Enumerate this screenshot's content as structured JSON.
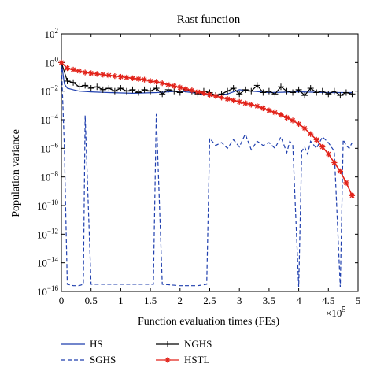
{
  "chart_data": {
    "type": "line",
    "title": "Rast function",
    "xlabel": "Function evaluation times (FEs)",
    "ylabel": "Population variance",
    "x_multiplier_base": "×10",
    "x_multiplier_exp": "5",
    "xlim": [
      0,
      5
    ],
    "ylim_log10": [
      -16,
      2
    ],
    "y_scale": "log",
    "x_ticks": [
      0,
      0.5,
      1,
      1.5,
      2,
      2.5,
      3,
      3.5,
      4,
      4.5,
      5
    ],
    "x_tick_labels": [
      "0",
      "0.5",
      "1",
      "1.5",
      "2",
      "2.5",
      "3",
      "3.5",
      "4",
      "4.5",
      "5"
    ],
    "y_ticks_exp": [
      2,
      0,
      -2,
      -4,
      -6,
      -8,
      -10,
      -12,
      -14,
      -16
    ],
    "y_tick_labels": [
      "10",
      "10",
      "10",
      "10",
      "10",
      "10",
      "10",
      "10",
      "10",
      "10"
    ],
    "y_tick_exps": [
      "2",
      "0",
      "−2",
      "−4",
      "−6",
      "−8",
      "−10",
      "−12",
      "−14",
      "−16"
    ],
    "legend_position": "below",
    "colors": {
      "HS": "#1f3fae",
      "SGHS": "#1f3fae",
      "NGHS": "#000000",
      "HSTL": "#e2231a"
    },
    "series": [
      {
        "name": "HS",
        "style": "solid",
        "x": [
          0,
          0.05,
          0.1,
          0.2,
          0.3,
          0.5,
          0.8,
          1.2,
          1.6,
          2.0,
          2.2,
          2.5,
          2.8,
          3.0,
          3.2,
          3.5,
          4.0,
          4.5,
          4.9
        ],
        "log10_y": [
          0.0,
          -1.5,
          -1.8,
          -1.9,
          -2.0,
          -2.05,
          -2.1,
          -2.15,
          -2.1,
          -2.0,
          -2.1,
          -2.3,
          -2.2,
          -1.9,
          -2.0,
          -2.1,
          -2.05,
          -2.1,
          -2.1
        ]
      },
      {
        "name": "SGHS",
        "style": "dashed",
        "x": [
          0,
          0.05,
          0.1,
          0.2,
          0.3,
          0.37,
          0.4,
          0.5,
          0.8,
          1.2,
          1.45,
          1.55,
          1.6,
          1.7,
          2.0,
          2.3,
          2.45,
          2.5,
          2.6,
          2.7,
          2.8,
          2.9,
          3.0,
          3.1,
          3.2,
          3.3,
          3.4,
          3.5,
          3.6,
          3.7,
          3.8,
          3.85,
          3.9,
          4.0,
          4.05,
          4.1,
          4.15,
          4.2,
          4.3,
          4.4,
          4.5,
          4.6,
          4.7,
          4.75,
          4.8,
          4.85,
          4.9
        ],
        "log10_y": [
          0.0,
          -6.0,
          -15.5,
          -15.6,
          -15.6,
          -15.5,
          -3.7,
          -15.5,
          -15.5,
          -15.5,
          -15.5,
          -15.5,
          -3.6,
          -15.5,
          -15.6,
          -15.6,
          -15.5,
          -5.3,
          -5.8,
          -5.6,
          -6.0,
          -5.4,
          -5.9,
          -5.0,
          -6.1,
          -5.5,
          -5.8,
          -5.6,
          -6.0,
          -5.2,
          -6.3,
          -5.5,
          -5.8,
          -15.7,
          -6.2,
          -5.9,
          -6.4,
          -5.5,
          -6.0,
          -5.2,
          -5.6,
          -6.2,
          -15.7,
          -5.4,
          -5.8,
          -6.0,
          -5.6
        ]
      },
      {
        "name": "NGHS",
        "style": "solid-plus",
        "x": [
          0,
          0.1,
          0.2,
          0.3,
          0.4,
          0.5,
          0.6,
          0.7,
          0.8,
          0.9,
          1.0,
          1.1,
          1.2,
          1.3,
          1.4,
          1.5,
          1.6,
          1.7,
          1.8,
          1.9,
          2.0,
          2.1,
          2.2,
          2.3,
          2.4,
          2.5,
          2.6,
          2.7,
          2.8,
          2.9,
          3.0,
          3.1,
          3.2,
          3.3,
          3.4,
          3.5,
          3.6,
          3.7,
          3.8,
          3.9,
          4.0,
          4.1,
          4.2,
          4.3,
          4.4,
          4.5,
          4.6,
          4.7,
          4.8,
          4.9
        ],
        "log10_y": [
          0.0,
          -1.3,
          -1.4,
          -1.7,
          -1.6,
          -1.8,
          -1.7,
          -1.9,
          -1.8,
          -2.0,
          -1.8,
          -2.0,
          -1.9,
          -2.1,
          -1.9,
          -2.0,
          -1.8,
          -2.2,
          -1.9,
          -2.0,
          -2.1,
          -1.9,
          -2.0,
          -2.2,
          -2.0,
          -2.1,
          -2.3,
          -2.2,
          -2.0,
          -1.8,
          -2.2,
          -1.9,
          -2.0,
          -1.6,
          -2.1,
          -2.0,
          -2.2,
          -1.7,
          -2.0,
          -2.1,
          -1.9,
          -2.3,
          -1.8,
          -2.1,
          -2.0,
          -2.2,
          -2.0,
          -2.3,
          -2.1,
          -2.2
        ]
      },
      {
        "name": "HSTL",
        "style": "solid-star",
        "x": [
          0,
          0.1,
          0.2,
          0.3,
          0.4,
          0.5,
          0.6,
          0.7,
          0.8,
          0.9,
          1.0,
          1.1,
          1.2,
          1.3,
          1.4,
          1.5,
          1.6,
          1.7,
          1.8,
          1.9,
          2.0,
          2.1,
          2.2,
          2.3,
          2.4,
          2.5,
          2.6,
          2.7,
          2.8,
          2.9,
          3.0,
          3.1,
          3.2,
          3.3,
          3.4,
          3.5,
          3.6,
          3.7,
          3.8,
          3.9,
          4.0,
          4.1,
          4.2,
          4.3,
          4.4,
          4.5,
          4.6,
          4.7,
          4.8,
          4.9
        ],
        "log10_y": [
          0.0,
          -0.4,
          -0.5,
          -0.6,
          -0.7,
          -0.75,
          -0.8,
          -0.85,
          -0.9,
          -0.95,
          -1.0,
          -1.05,
          -1.1,
          -1.15,
          -1.2,
          -1.3,
          -1.35,
          -1.45,
          -1.55,
          -1.65,
          -1.75,
          -1.85,
          -1.95,
          -2.05,
          -2.15,
          -2.25,
          -2.35,
          -2.45,
          -2.55,
          -2.65,
          -2.75,
          -2.85,
          -2.95,
          -3.05,
          -3.2,
          -3.35,
          -3.5,
          -3.65,
          -3.85,
          -4.05,
          -4.3,
          -4.6,
          -5.0,
          -5.4,
          -5.9,
          -6.4,
          -7.0,
          -7.6,
          -8.4,
          -9.3
        ]
      }
    ]
  }
}
